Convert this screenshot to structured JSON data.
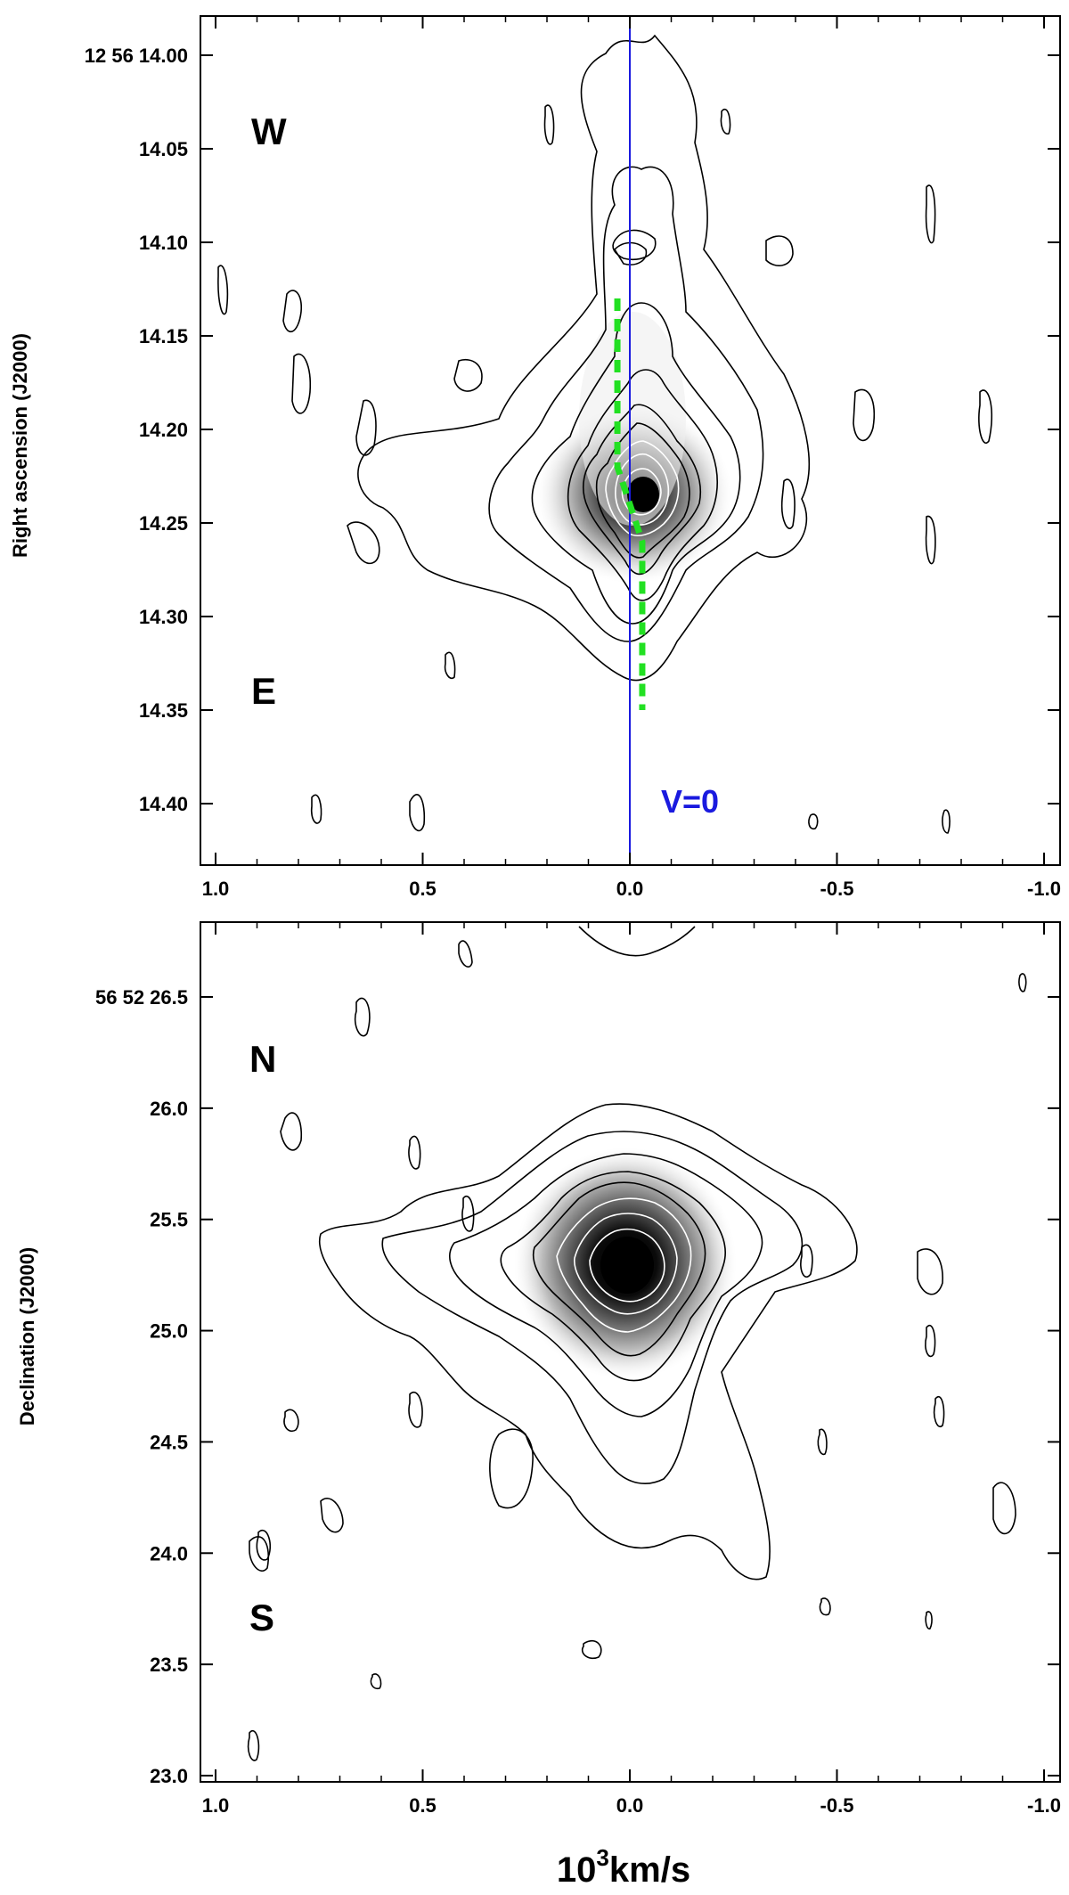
{
  "chart_data": [
    {
      "type": "heatmap",
      "title": "",
      "ylabel": "Right ascension (J2000)",
      "xlabel": "",
      "xlim": [
        1.0,
        -1.0
      ],
      "ylim": [
        14.0,
        14.4
      ],
      "x_ticks": [
        {
          "value": 1.0,
          "label": "1.0"
        },
        {
          "value": 0.5,
          "label": "0.5"
        },
        {
          "value": 0.0,
          "label": "0.0"
        },
        {
          "value": -0.5,
          "label": "-0.5"
        },
        {
          "value": -1.0,
          "label": "-1.0"
        }
      ],
      "y_ticks": [
        {
          "value": 14.0,
          "label": "12 56 14.00"
        },
        {
          "value": 14.05,
          "label": "14.05"
        },
        {
          "value": 14.1,
          "label": "14.10"
        },
        {
          "value": 14.15,
          "label": "14.15"
        },
        {
          "value": 14.2,
          "label": "14.20"
        },
        {
          "value": 14.25,
          "label": "14.25"
        },
        {
          "value": 14.3,
          "label": "14.30"
        },
        {
          "value": 14.35,
          "label": "14.35"
        },
        {
          "value": 14.4,
          "label": "14.40"
        }
      ],
      "annotations": {
        "top": "W",
        "bottom": "E",
        "vline": "V=0"
      },
      "vline_x": 0.0,
      "vline_color": "#1a1adf",
      "trace_color": "#22e022",
      "peak": {
        "x": 0.0,
        "y": 14.24
      },
      "trace": [
        {
          "x": 0.03,
          "y": 14.13
        },
        {
          "x": 0.03,
          "y": 14.22
        },
        {
          "x": 0.0,
          "y": 14.24
        },
        {
          "x": -0.03,
          "y": 14.26
        },
        {
          "x": -0.03,
          "y": 14.35
        }
      ]
    },
    {
      "type": "heatmap",
      "title": "",
      "ylabel": "Declination (J2000)",
      "xlabel": "10³km/s",
      "xlim": [
        1.0,
        -1.0
      ],
      "ylim": [
        23.0,
        26.5
      ],
      "x_ticks": [
        {
          "value": 1.0,
          "label": "1.0"
        },
        {
          "value": 0.5,
          "label": "0.5"
        },
        {
          "value": 0.0,
          "label": "0.0"
        },
        {
          "value": -0.5,
          "label": "-0.5"
        },
        {
          "value": -1.0,
          "label": "-1.0"
        }
      ],
      "y_ticks": [
        {
          "value": 26.5,
          "label": "56 52 26.5"
        },
        {
          "value": 26.0,
          "label": "26.0"
        },
        {
          "value": 25.5,
          "label": "25.5"
        },
        {
          "value": 25.0,
          "label": "25.0"
        },
        {
          "value": 24.5,
          "label": "24.5"
        },
        {
          "value": 24.0,
          "label": "24.0"
        },
        {
          "value": 23.5,
          "label": "23.5"
        },
        {
          "value": 23.0,
          "label": "23.0"
        }
      ],
      "annotations": {
        "top": "N",
        "bottom": "S"
      },
      "peak": {
        "x": 0.0,
        "y": 25.2
      }
    }
  ],
  "xtitle": {
    "base": "10",
    "exp": "3",
    "unit": "km/s"
  }
}
